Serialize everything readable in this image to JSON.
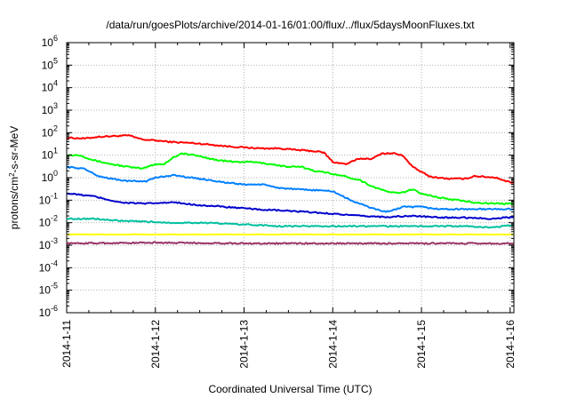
{
  "chart_data": {
    "type": "line",
    "title": "/data/run/goesPlots/archive/2014-01-16/01:00/flux/../flux/5daysMoonFluxes.txt",
    "xlabel": "Coordinated Universal Time (UTC)",
    "ylabel": {
      "prefix": "protons/cm",
      "sup": "2",
      "suffix": "-s-sr-MeV"
    },
    "yscale": "log",
    "ylim": [
      1e-06,
      1000000.0
    ],
    "xlim": [
      "2014-01-11 00:00",
      "2014-01-16 01:00"
    ],
    "grid": true,
    "legend": "none",
    "y_ticks": [
      {
        "exp": -6,
        "base": "10",
        "sup": "-6"
      },
      {
        "exp": -5,
        "base": "10",
        "sup": "-5"
      },
      {
        "exp": -4,
        "base": "10",
        "sup": "-4"
      },
      {
        "exp": -3,
        "base": "10",
        "sup": "-3"
      },
      {
        "exp": -2,
        "base": "10",
        "sup": "-2"
      },
      {
        "exp": -1,
        "base": "10",
        "sup": "-1"
      },
      {
        "exp": 0,
        "base": "10",
        "sup": "0"
      },
      {
        "exp": 1,
        "base": "10",
        "sup": "1"
      },
      {
        "exp": 2,
        "base": "10",
        "sup": "2"
      },
      {
        "exp": 3,
        "base": "10",
        "sup": "3"
      },
      {
        "exp": 4,
        "base": "10",
        "sup": "4"
      },
      {
        "exp": 5,
        "base": "10",
        "sup": "5"
      },
      {
        "exp": 6,
        "base": "10",
        "sup": "6"
      }
    ],
    "x_ticks": [
      {
        "day": 0,
        "label": "2014-1-11"
      },
      {
        "day": 1,
        "label": "2014-1-12"
      },
      {
        "day": 2,
        "label": "2014-1-13"
      },
      {
        "day": 3,
        "label": "2014-1-14"
      },
      {
        "day": 4,
        "label": "2014-1-15"
      },
      {
        "day": 5,
        "label": "2014-1-16"
      }
    ],
    "series": [
      {
        "color": "#ff0000",
        "points": [
          [
            0,
            60
          ],
          [
            0.2,
            55
          ],
          [
            0.35,
            65
          ],
          [
            0.5,
            70
          ],
          [
            0.7,
            75
          ],
          [
            0.85,
            50
          ],
          [
            1.0,
            45
          ],
          [
            1.2,
            38
          ],
          [
            1.4,
            35
          ],
          [
            1.6,
            30
          ],
          [
            1.8,
            25
          ],
          [
            2.0,
            22
          ],
          [
            2.2,
            20
          ],
          [
            2.4,
            20
          ],
          [
            2.6,
            17
          ],
          [
            2.8,
            15
          ],
          [
            2.9,
            13
          ],
          [
            3.0,
            5
          ],
          [
            3.15,
            4
          ],
          [
            3.3,
            7
          ],
          [
            3.45,
            7
          ],
          [
            3.55,
            12
          ],
          [
            3.7,
            12
          ],
          [
            3.8,
            9
          ],
          [
            3.9,
            3
          ],
          [
            4.0,
            1.8
          ],
          [
            4.1,
            1.1
          ],
          [
            4.3,
            0.9
          ],
          [
            4.5,
            0.9
          ],
          [
            4.6,
            1.2
          ],
          [
            4.7,
            1.1
          ],
          [
            4.85,
            1.0
          ],
          [
            4.95,
            0.7
          ],
          [
            5.04,
            0.6
          ]
        ]
      },
      {
        "color": "#00ff00",
        "points": [
          [
            0,
            10
          ],
          [
            0.15,
            10
          ],
          [
            0.3,
            6
          ],
          [
            0.5,
            4
          ],
          [
            0.7,
            3
          ],
          [
            0.85,
            2.5
          ],
          [
            1.0,
            4
          ],
          [
            1.1,
            4
          ],
          [
            1.2,
            8
          ],
          [
            1.3,
            12
          ],
          [
            1.5,
            9
          ],
          [
            1.7,
            6
          ],
          [
            1.9,
            5
          ],
          [
            2.1,
            5
          ],
          [
            2.3,
            4
          ],
          [
            2.5,
            3
          ],
          [
            2.65,
            3
          ],
          [
            2.8,
            2
          ],
          [
            3.0,
            1.5
          ],
          [
            3.15,
            1.1
          ],
          [
            3.3,
            0.8
          ],
          [
            3.45,
            0.4
          ],
          [
            3.6,
            0.25
          ],
          [
            3.75,
            0.2
          ],
          [
            3.9,
            0.3
          ],
          [
            4.0,
            0.2
          ],
          [
            4.2,
            0.13
          ],
          [
            4.4,
            0.1
          ],
          [
            4.6,
            0.08
          ],
          [
            4.8,
            0.07
          ],
          [
            5.04,
            0.07
          ]
        ]
      },
      {
        "color": "#0080ff",
        "points": [
          [
            0,
            3
          ],
          [
            0.2,
            2.5
          ],
          [
            0.35,
            1.2
          ],
          [
            0.5,
            0.9
          ],
          [
            0.7,
            0.7
          ],
          [
            0.9,
            0.7
          ],
          [
            1.0,
            1
          ],
          [
            1.2,
            1.3
          ],
          [
            1.4,
            1.0
          ],
          [
            1.6,
            0.8
          ],
          [
            1.8,
            0.6
          ],
          [
            2.0,
            0.5
          ],
          [
            2.2,
            0.5
          ],
          [
            2.4,
            0.35
          ],
          [
            2.6,
            0.3
          ],
          [
            2.8,
            0.28
          ],
          [
            3.0,
            0.25
          ],
          [
            3.2,
            0.1
          ],
          [
            3.4,
            0.05
          ],
          [
            3.6,
            0.03
          ],
          [
            3.8,
            0.05
          ],
          [
            4.0,
            0.05
          ],
          [
            4.2,
            0.04
          ],
          [
            4.4,
            0.04
          ],
          [
            4.6,
            0.04
          ],
          [
            4.8,
            0.04
          ],
          [
            5.04,
            0.04
          ]
        ]
      },
      {
        "color": "#0000cd",
        "points": [
          [
            0,
            0.2
          ],
          [
            0.3,
            0.15
          ],
          [
            0.6,
            0.08
          ],
          [
            0.9,
            0.07
          ],
          [
            1.2,
            0.08
          ],
          [
            1.5,
            0.06
          ],
          [
            1.8,
            0.05
          ],
          [
            2.1,
            0.04
          ],
          [
            2.4,
            0.035
          ],
          [
            2.7,
            0.03
          ],
          [
            3.0,
            0.025
          ],
          [
            3.3,
            0.02
          ],
          [
            3.6,
            0.018
          ],
          [
            3.9,
            0.02
          ],
          [
            4.2,
            0.017
          ],
          [
            4.5,
            0.017
          ],
          [
            4.8,
            0.015
          ],
          [
            5.04,
            0.018
          ]
        ]
      },
      {
        "color": "#00c0a0",
        "points": [
          [
            0,
            0.015
          ],
          [
            0.3,
            0.015
          ],
          [
            0.6,
            0.012
          ],
          [
            0.9,
            0.011
          ],
          [
            1.2,
            0.01
          ],
          [
            1.5,
            0.01
          ],
          [
            1.8,
            0.009
          ],
          [
            2.1,
            0.008
          ],
          [
            2.4,
            0.007
          ],
          [
            2.7,
            0.007
          ],
          [
            3.0,
            0.007
          ],
          [
            3.3,
            0.007
          ],
          [
            3.6,
            0.007
          ],
          [
            3.9,
            0.007
          ],
          [
            4.2,
            0.007
          ],
          [
            4.5,
            0.007
          ],
          [
            4.8,
            0.006
          ],
          [
            5.04,
            0.008
          ]
        ]
      },
      {
        "color": "#ffff00",
        "points": [
          [
            0,
            0.003
          ],
          [
            1,
            0.003
          ],
          [
            2,
            0.003
          ],
          [
            3,
            0.003
          ],
          [
            4,
            0.003
          ],
          [
            5.04,
            0.003
          ]
        ]
      },
      {
        "color": "#993366",
        "points": [
          [
            0,
            0.0012
          ],
          [
            1,
            0.0013
          ],
          [
            2,
            0.0012
          ],
          [
            3,
            0.0012
          ],
          [
            4,
            0.0012
          ],
          [
            5.04,
            0.0012
          ]
        ]
      }
    ]
  }
}
